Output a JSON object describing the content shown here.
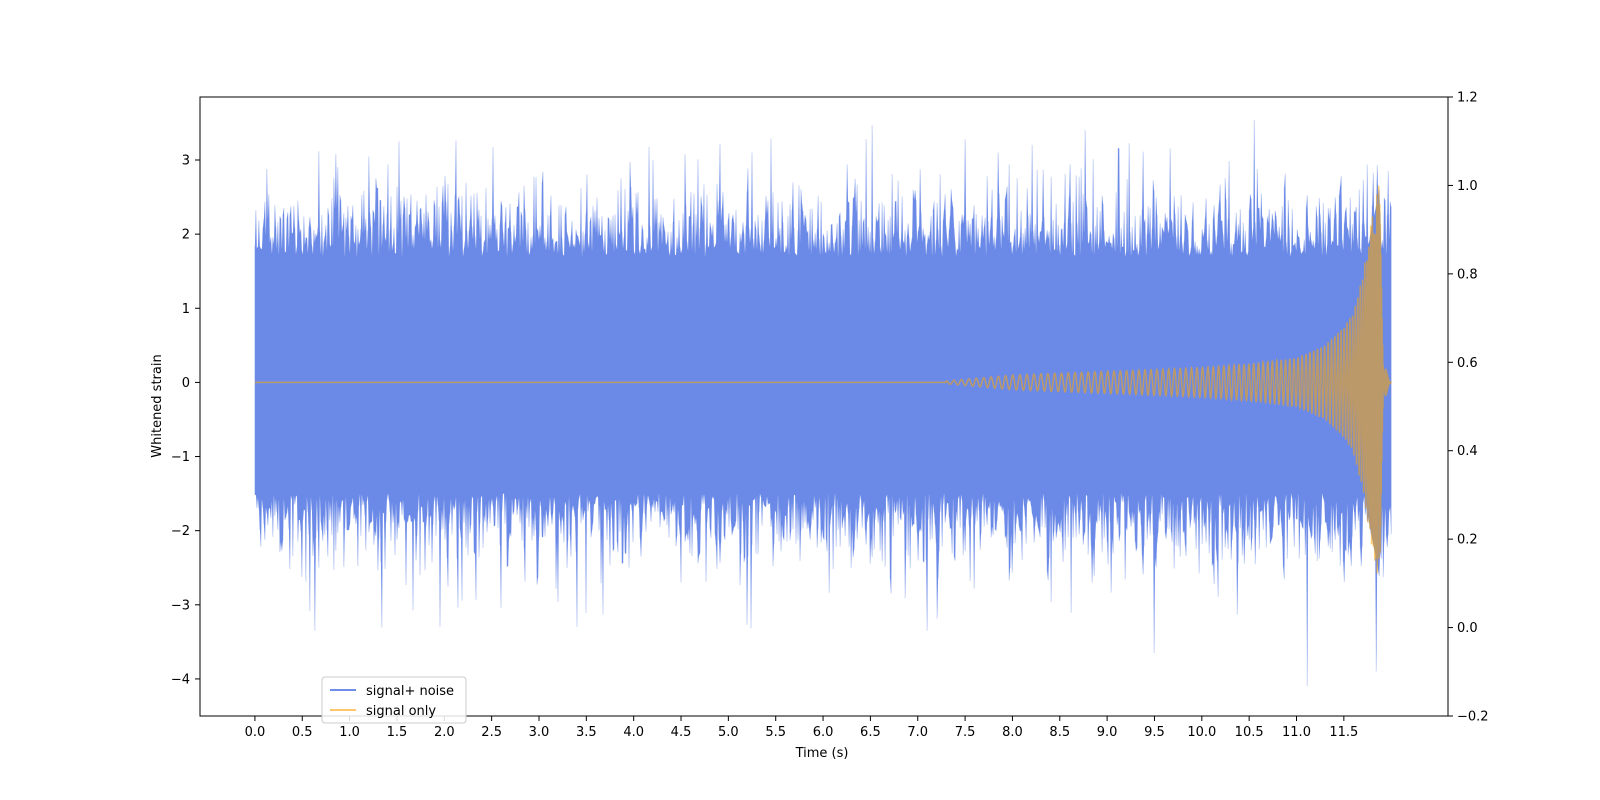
{
  "chart_data": {
    "type": "line",
    "xlabel": "Time (s)",
    "ylabel": "Whitened strain",
    "xlim": [
      -0.58,
      12.6
    ],
    "ylim": [
      -4.5,
      3.85
    ],
    "y2lim": [
      -0.2,
      1.2
    ],
    "grid": false,
    "legend_placement": "lower left",
    "x_ticks": [
      "0.0",
      "0.5",
      "1.0",
      "1.5",
      "2.0",
      "2.5",
      "3.0",
      "3.5",
      "4.0",
      "4.5",
      "5.0",
      "5.5",
      "6.0",
      "6.5",
      "7.0",
      "7.5",
      "8.0",
      "8.5",
      "9.0",
      "9.5",
      "10.0",
      "10.5",
      "11.0",
      "11.5"
    ],
    "y_ticks": [
      "3",
      "2",
      "1",
      "0",
      "−1",
      "−2",
      "−3",
      "−4"
    ],
    "y2_ticks": [
      "1.2",
      "1.0",
      "0.8",
      "0.6",
      "0.4",
      "0.2",
      "0.0",
      "−0.2"
    ],
    "series": [
      {
        "name": "signal+ noise",
        "color": "#4169e1",
        "opacity": 0.7,
        "t_start": 0.0,
        "t_end": 12.0,
        "description_values": "noisy whitened strain",
        "typical_upper": 1.7,
        "typical_lower": -1.5,
        "extremes": [
          {
            "t": 0.63,
            "y": -3.35
          },
          {
            "t": 1.52,
            "y": 3.25
          },
          {
            "t": 1.95,
            "y": -3.3
          },
          {
            "t": 3.4,
            "y": -3.3
          },
          {
            "t": 6.52,
            "y": 3.47
          },
          {
            "t": 7.1,
            "y": -3.35
          },
          {
            "t": 7.85,
            "y": 3.1
          },
          {
            "t": 9.12,
            "y": 3.16
          },
          {
            "t": 9.5,
            "y": -3.65
          },
          {
            "t": 11.11,
            "y": -4.1
          },
          {
            "t": 11.84,
            "y": -3.9
          },
          {
            "t": 11.85,
            "y": 2.93
          }
        ]
      },
      {
        "name": "signal only",
        "color": "#ffa500",
        "opacity": 0.55,
        "t_start": 0.0,
        "t_end": 12.0,
        "merger_time": 11.88,
        "peak_amplitude": 2.8,
        "chirp_envelope": [
          {
            "t": 7.3,
            "amp": 0.02
          },
          {
            "t": 8.0,
            "amp": 0.1
          },
          {
            "t": 9.0,
            "amp": 0.15
          },
          {
            "t": 10.0,
            "amp": 0.2
          },
          {
            "t": 10.5,
            "amp": 0.25
          },
          {
            "t": 11.0,
            "amp": 0.33
          },
          {
            "t": 11.3,
            "amp": 0.5
          },
          {
            "t": 11.5,
            "amp": 0.75
          },
          {
            "t": 11.6,
            "amp": 0.95
          },
          {
            "t": 11.7,
            "amp": 1.45
          },
          {
            "t": 11.78,
            "amp": 2.1
          },
          {
            "t": 11.84,
            "amp": 2.5
          },
          {
            "t": 11.88,
            "amp": 2.8
          }
        ]
      }
    ]
  }
}
